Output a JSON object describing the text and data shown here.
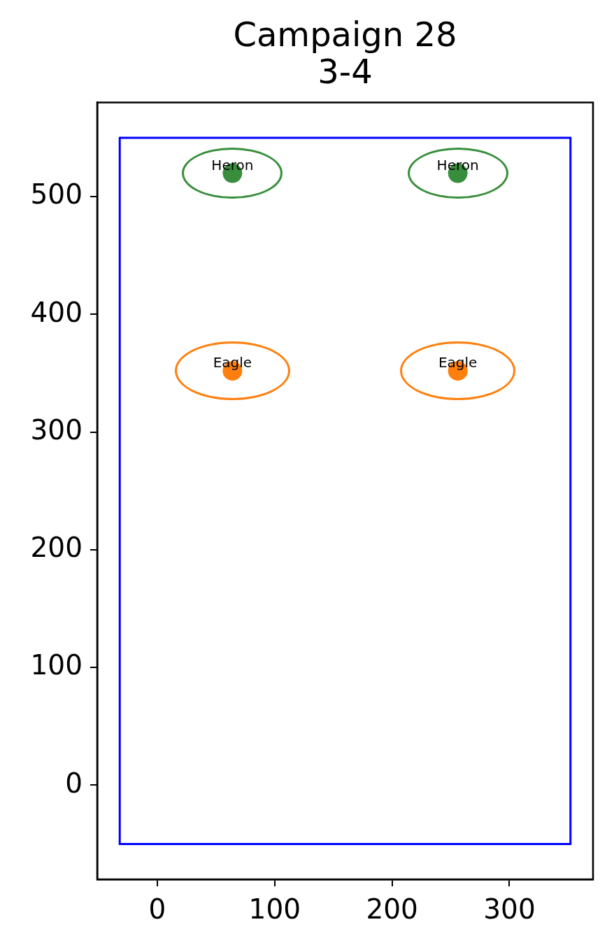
{
  "chart_data": {
    "type": "scatter",
    "title": "Campaign 28",
    "subtitle": "3-4",
    "xlim": [
      -51.2,
      371.2
    ],
    "ylim": [
      -80,
      580
    ],
    "xticks": [
      0,
      100,
      200,
      300
    ],
    "yticks": [
      0,
      100,
      200,
      300,
      400,
      500
    ],
    "marker": "circle",
    "series": [
      {
        "name": "Heron",
        "color": "#388e3c",
        "x": [
          64,
          256
        ],
        "values": [
          520,
          520
        ]
      },
      {
        "name": "Eagle",
        "color": "#ff7f0e",
        "x": [
          64,
          256
        ],
        "values": [
          352,
          352
        ]
      },
      {
        "type": "line",
        "marker": "none",
        "color": "#0000ff",
        "x": [
          -32,
          352
        ],
        "values": [
          -50,
          -50
        ]
      },
      {
        "type": "line",
        "marker": "none",
        "color": "#0000ff",
        "x": [
          -32,
          352
        ],
        "values": [
          550,
          550
        ]
      },
      {
        "type": "line",
        "marker": "none",
        "color": "#0000ff",
        "x": [
          -32,
          -32
        ],
        "values": [
          -50,
          550
        ]
      },
      {
        "type": "line",
        "marker": "none",
        "color": "#0000ff",
        "x": [
          352,
          352
        ],
        "values": [
          -50,
          550
        ]
      }
    ]
  }
}
